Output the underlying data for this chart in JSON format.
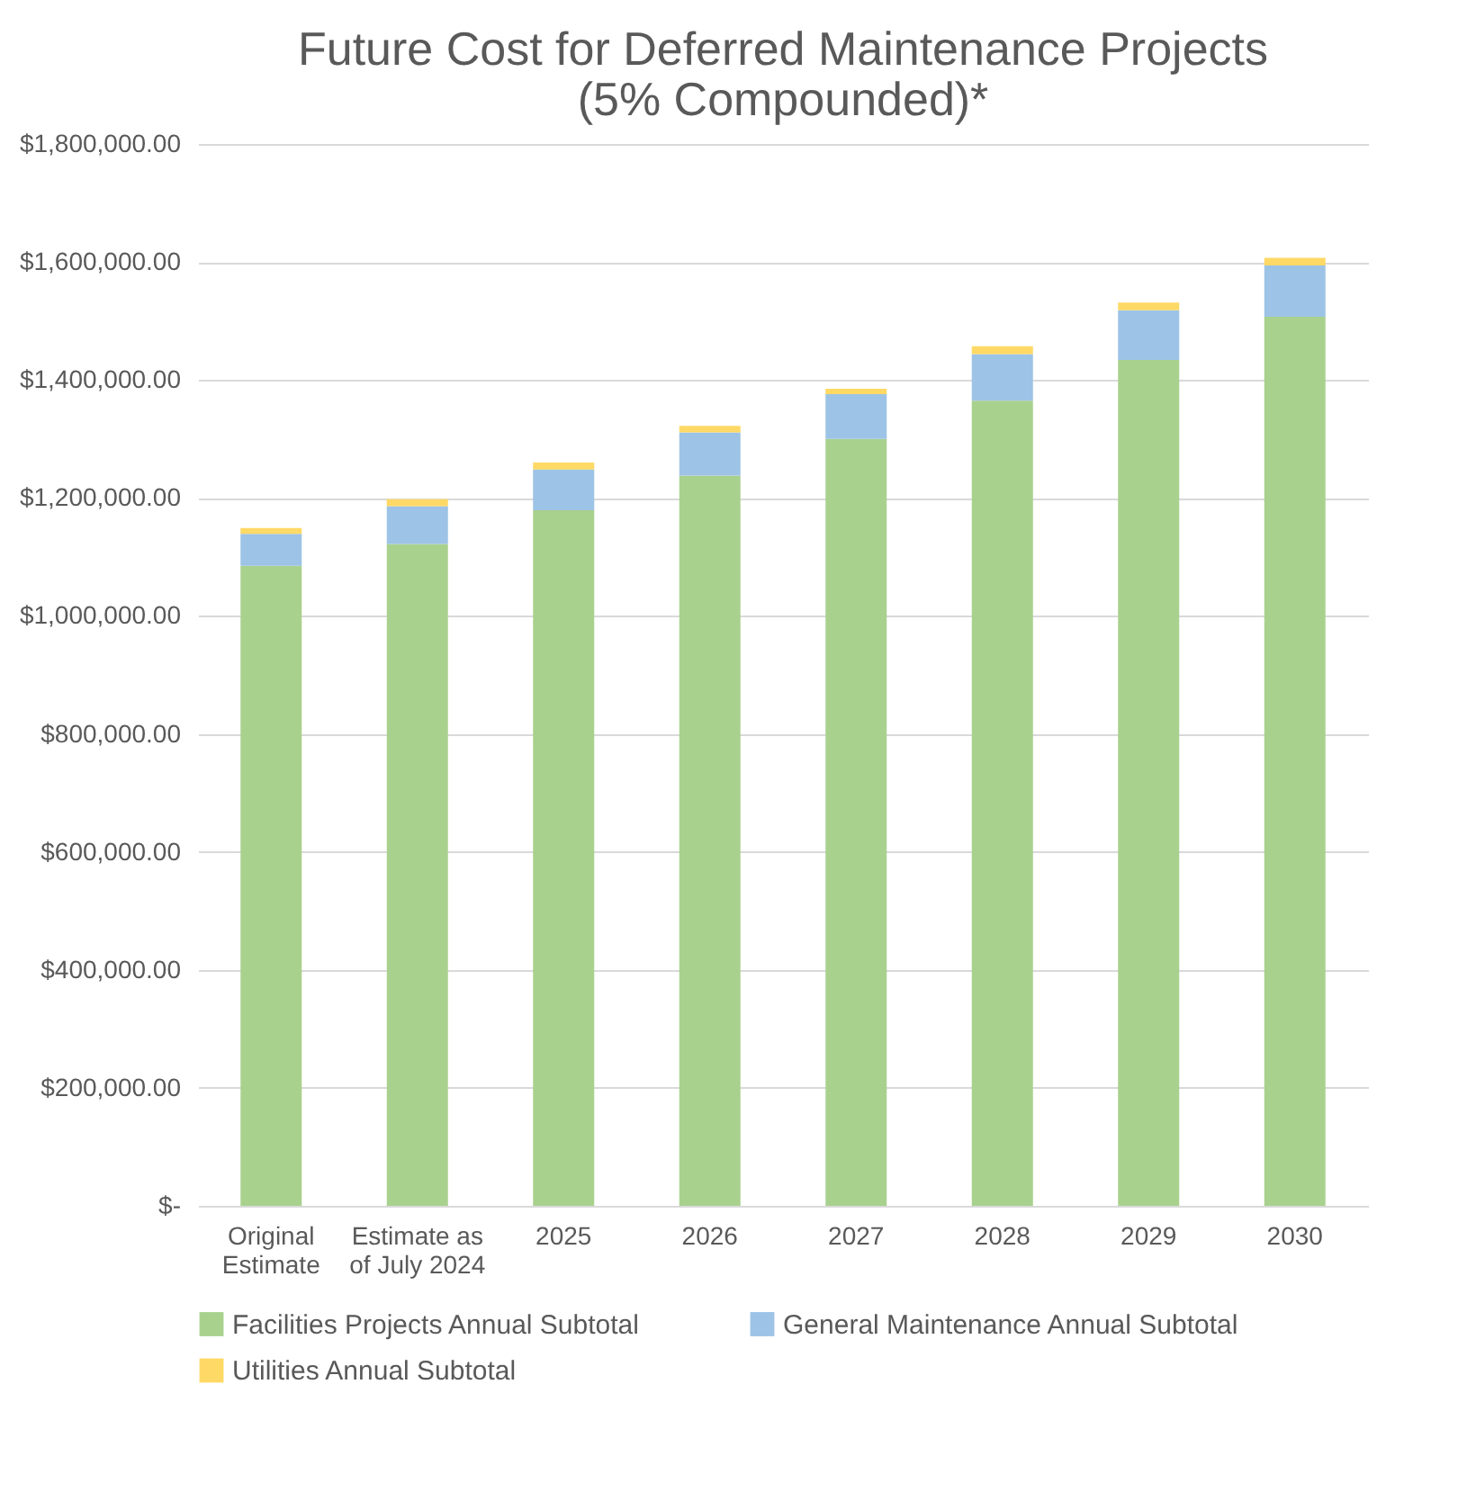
{
  "chart_data": {
    "type": "bar",
    "stacked": true,
    "title": "Future Cost for Deferred Maintenance Projects\n(5% Compounded)*",
    "categories": [
      "Original Estimate",
      "Estimate as of July 2024",
      "2025",
      "2026",
      "2027",
      "2028",
      "2029",
      "2030"
    ],
    "series": [
      {
        "name": "Facilities Projects Annual Subtotal",
        "color": "#a9d18e",
        "values": [
          1085000,
          1122000,
          1179000,
          1238000,
          1300000,
          1365000,
          1434000,
          1507000
        ]
      },
      {
        "name": "General Maintenance Annual Subtotal",
        "color": "#9dc3e6",
        "values": [
          54000,
          64000,
          69000,
          73000,
          76000,
          79000,
          84000,
          87000
        ]
      },
      {
        "name": "Utilities Annual Subtotal",
        "color": "#ffd966",
        "values": [
          10000,
          12000,
          12000,
          11000,
          9000,
          13000,
          13000,
          13000
        ]
      }
    ],
    "ylim": [
      0,
      1800000
    ],
    "yticks": [
      {
        "value": 0,
        "label": "$-"
      },
      {
        "value": 200000,
        "label": "$200,000.00"
      },
      {
        "value": 400000,
        "label": "$400,000.00"
      },
      {
        "value": 600000,
        "label": "$600,000.00"
      },
      {
        "value": 800000,
        "label": "$800,000.00"
      },
      {
        "value": 1000000,
        "label": "$1,000,000.00"
      },
      {
        "value": 1200000,
        "label": "$1,200,000.00"
      },
      {
        "value": 1400000,
        "label": "$1,400,000.00"
      },
      {
        "value": 1600000,
        "label": "$1,600,000.00"
      },
      {
        "value": 1800000,
        "label": "$1,800,000.00"
      }
    ],
    "grid": "y",
    "legend": "bottom"
  }
}
